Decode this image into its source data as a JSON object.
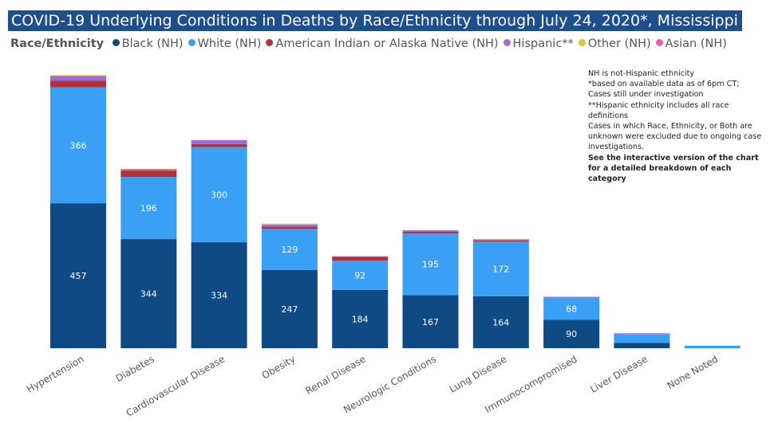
{
  "chart_data": {
    "type": "bar",
    "stacked": true,
    "title": "COVID-19 Underlying Conditions in Deaths by Race/Ethnicity through July 24, 2020*, Mississippi",
    "legend_title": "Race/Ethnicity",
    "legend_placement": "top",
    "grid": false,
    "categories": [
      "Hypertension",
      "Diabetes",
      "Cardiovascular Disease",
      "Obesity",
      "Renal Disease",
      "Neurologic Conditions",
      "Lung Disease",
      "Immunocompromised",
      "Liver Disease",
      "None Noted"
    ],
    "series": [
      {
        "name": "Black (NH)",
        "color": "#0f4a85",
        "values": [
          457,
          344,
          334,
          247,
          184,
          167,
          164,
          90,
          17,
          0
        ],
        "labeled": true
      },
      {
        "name": "White (NH)",
        "color": "#3aa0f5",
        "values": [
          366,
          196,
          300,
          129,
          92,
          195,
          172,
          68,
          28,
          8
        ],
        "labeled": true
      },
      {
        "name": "American Indian or Alaska Native (NH)",
        "color": "#b0313a",
        "values": [
          20,
          20,
          10,
          7,
          12,
          5,
          4,
          0,
          0,
          0
        ]
      },
      {
        "name": "Hispanic**",
        "color": "#9a6fd1",
        "values": [
          15,
          4,
          12,
          7,
          2,
          5,
          3,
          4,
          2,
          0
        ]
      },
      {
        "name": "Other (NH)",
        "color": "#e8c13a",
        "values": [
          3,
          2,
          1,
          3,
          0,
          0,
          1,
          0,
          0,
          0
        ]
      },
      {
        "name": "Asian (NH)",
        "color": "#e85fb0",
        "values": [
          0,
          0,
          0,
          0,
          0,
          0,
          0,
          0,
          0,
          0
        ]
      }
    ]
  },
  "notes": [
    {
      "text": "NH is not-Hispanic ethnicity",
      "bold": false
    },
    {
      "text": "*based on available data as of 6pm CT; Cases still under investigation",
      "bold": false
    },
    {
      "text": "**Hispanic ethnicity includes all race definitions",
      "bold": false
    },
    {
      "text": "Cases in which Race, Ethnicity, or Both are unknown were excluded due to ongoing case investigations.",
      "bold": false
    },
    {
      "text": "See the interactive version of the chart for a detailed breakdown of each category",
      "bold": true
    }
  ]
}
